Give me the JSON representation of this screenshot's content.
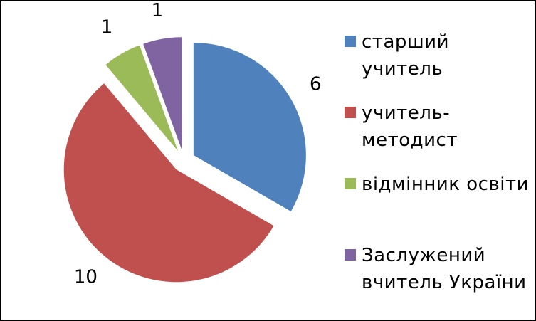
{
  "chart_data": {
    "type": "pie",
    "exploded": true,
    "series": [
      {
        "name": "старший учитель",
        "color": "#4F81BD",
        "values": [
          6
        ]
      },
      {
        "name": "учитель-методист",
        "color": "#C0504D",
        "values": [
          10
        ]
      },
      {
        "name": "відмінник освіти",
        "color": "#9BBB59",
        "values": [
          1
        ]
      },
      {
        "name": "Заслужений вчитель України",
        "color": "#8064A2",
        "values": [
          1
        ]
      }
    ],
    "legend": "right"
  }
}
